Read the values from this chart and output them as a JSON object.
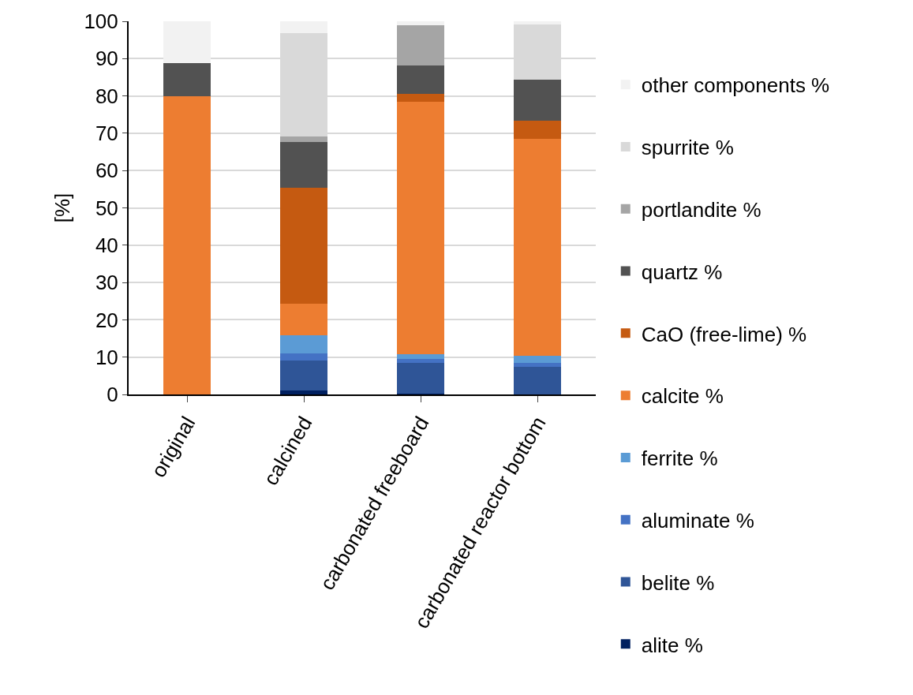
{
  "chart_data": {
    "type": "bar",
    "stacked": true,
    "ylabel": "[%]",
    "categories": [
      "original",
      "calcined",
      "carbonated freeboard",
      "carbonated reactor bottom"
    ],
    "series": [
      {
        "name": "alite %",
        "color": "#002060",
        "values": [
          0,
          1.1,
          0.2,
          0.1
        ]
      },
      {
        "name": "belite %",
        "color": "#2f5597",
        "values": [
          0,
          8.0,
          8.3,
          7.3
        ]
      },
      {
        "name": "aluminate %",
        "color": "#4472c4",
        "values": [
          0,
          1.8,
          1.1,
          1.0
        ]
      },
      {
        "name": "ferrite %",
        "color": "#5b9bd5",
        "values": [
          0,
          5.0,
          1.1,
          1.9
        ]
      },
      {
        "name": "calcite %",
        "color": "#ed7d31",
        "values": [
          80.0,
          8.5,
          67.7,
          58.1
        ]
      },
      {
        "name": "CaO (free-lime) %",
        "color": "#c55a11",
        "values": [
          0,
          31.0,
          2.1,
          4.9
        ]
      },
      {
        "name": "quartz %",
        "color": "#525252",
        "values": [
          8.7,
          12.3,
          7.7,
          11.0
        ]
      },
      {
        "name": "portlandite %",
        "color": "#a5a5a5",
        "values": [
          0,
          1.4,
          10.7,
          0
        ]
      },
      {
        "name": "spurrite %",
        "color": "#d9d9d9",
        "values": [
          0,
          27.7,
          0,
          14.8
        ]
      },
      {
        "name": "other components %",
        "color": "#f2f2f2",
        "values": [
          11.3,
          3.2,
          1.1,
          0.9
        ]
      }
    ],
    "ylim": [
      0,
      100
    ],
    "yticks": [
      0,
      10,
      20,
      30,
      40,
      50,
      60,
      70,
      80,
      90,
      100
    ],
    "grid": "y",
    "legend": "right"
  }
}
